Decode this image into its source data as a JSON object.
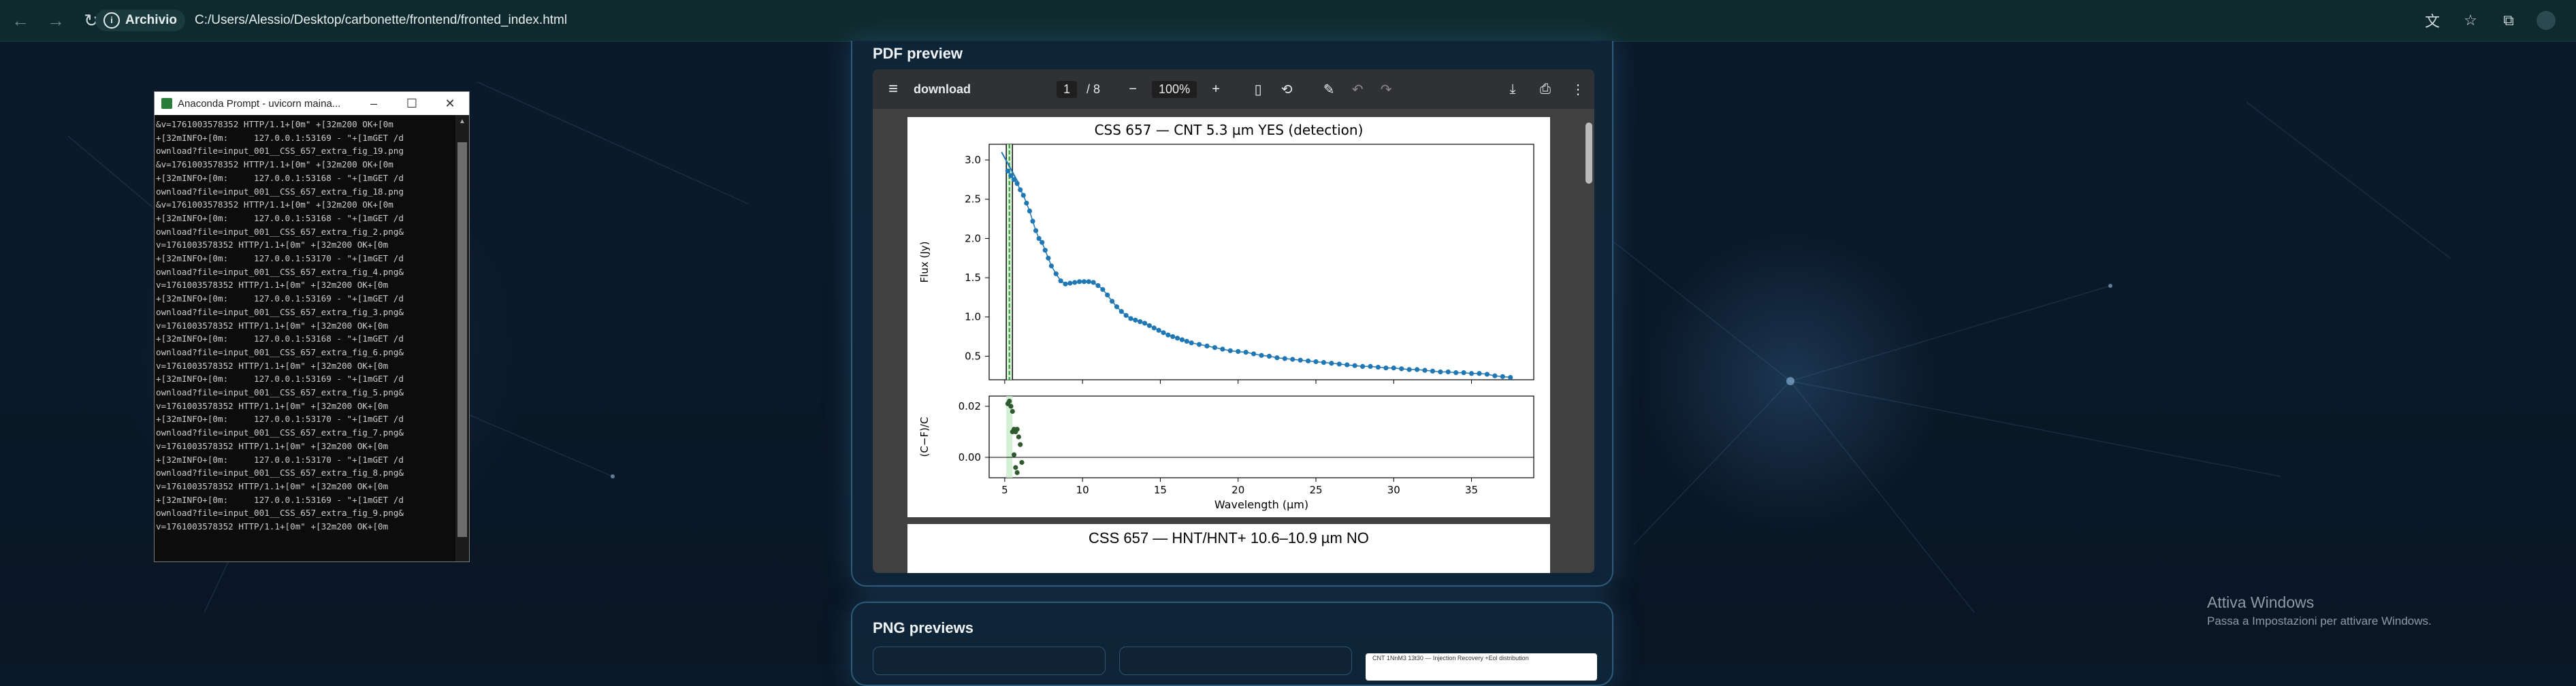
{
  "browser": {
    "back_icon": "arrow-left-icon",
    "forward_icon": "arrow-right-icon",
    "reload_icon": "reload-icon",
    "site_info_label": "Archivio",
    "url": "C:/Users/Alessio/Desktop/carbonette/frontend/fronted_index.html"
  },
  "terminal": {
    "title": "Anaconda Prompt - uvicorn  maina...",
    "lines": [
      "&v=1761003578352 HTTP/1.1+[0m\" +[32m200 OK+[0m",
      "+[32mINFO+[0m:     127.0.0.1:53169 - \"+[1mGET /d",
      "ownload?file=input_001__CSS_657_extra_fig_19.png",
      "&v=1761003578352 HTTP/1.1+[0m\" +[32m200 OK+[0m",
      "+[32mINFO+[0m:     127.0.0.1:53168 - \"+[1mGET /d",
      "ownload?file=input_001__CSS_657_extra_fig_18.png",
      "&v=1761003578352 HTTP/1.1+[0m\" +[32m200 OK+[0m",
      "+[32mINFO+[0m:     127.0.0.1:53168 - \"+[1mGET /d",
      "ownload?file=input_001__CSS_657_extra_fig_2.png&",
      "v=1761003578352 HTTP/1.1+[0m\" +[32m200 OK+[0m",
      "+[32mINFO+[0m:     127.0.0.1:53170 - \"+[1mGET /d",
      "ownload?file=input_001__CSS_657_extra_fig_4.png&",
      "v=1761003578352 HTTP/1.1+[0m\" +[32m200 OK+[0m",
      "+[32mINFO+[0m:     127.0.0.1:53169 - \"+[1mGET /d",
      "ownload?file=input_001__CSS_657_extra_fig_3.png&",
      "v=1761003578352 HTTP/1.1+[0m\" +[32m200 OK+[0m",
      "+[32mINFO+[0m:     127.0.0.1:53168 - \"+[1mGET /d",
      "ownload?file=input_001__CSS_657_extra_fig_6.png&",
      "v=1761003578352 HTTP/1.1+[0m\" +[32m200 OK+[0m",
      "+[32mINFO+[0m:     127.0.0.1:53169 - \"+[1mGET /d",
      "ownload?file=input_001__CSS_657_extra_fig_5.png&",
      "v=1761003578352 HTTP/1.1+[0m\" +[32m200 OK+[0m",
      "+[32mINFO+[0m:     127.0.0.1:53170 - \"+[1mGET /d",
      "ownload?file=input_001__CSS_657_extra_fig_7.png&",
      "v=1761003578352 HTTP/1.1+[0m\" +[32m200 OK+[0m",
      "+[32mINFO+[0m:     127.0.0.1:53170 - \"+[1mGET /d",
      "ownload?file=input_001__CSS_657_extra_fig_8.png&",
      "v=1761003578352 HTTP/1.1+[0m\" +[32m200 OK+[0m",
      "+[32mINFO+[0m:     127.0.0.1:53169 - \"+[1mGET /d",
      "ownload?file=input_001__CSS_657_extra_fig_9.png&",
      "v=1761003578352 HTTP/1.1+[0m\" +[32m200 OK+[0m"
    ]
  },
  "pdf_section": {
    "title": "PDF preview",
    "toolbar": {
      "doc_name": "download",
      "page_current": "1",
      "page_total": "/ 8",
      "zoom": "100%"
    },
    "page2_title": "CSS 657 — HNT/HNT+ 10.6–10.9 µm NO"
  },
  "png_section": {
    "title": "PNG previews",
    "thumb_caption": "CNT 1NnM3 13t30 — Injection Recovery +Eol distribution"
  },
  "watermark": {
    "line1": "Attiva Windows",
    "line2": "Passa a Impostazioni per attivare Windows."
  },
  "chart_data": {
    "type": "line",
    "title": "CSS 657 — CNT 5.3 µm YES (detection)",
    "ylabel": "Flux (Jy)",
    "xlabel": "Wavelength (µm)",
    "residual_ylabel": "(C−F)/C",
    "xlim": [
      4,
      39
    ],
    "ylim": [
      0.2,
      3.2
    ],
    "residual_ylim": [
      -0.008,
      0.024
    ],
    "xticks": [
      "5",
      "10",
      "15",
      "20",
      "25",
      "30",
      "35"
    ],
    "yticks": [
      "0.5",
      "1.0",
      "1.5",
      "2.0",
      "2.5",
      "3.0"
    ],
    "residual_yticks": [
      "0.00",
      "0.02"
    ],
    "band_center": 5.3,
    "band_range": [
      5.1,
      5.5
    ],
    "colors": {
      "series": "#1f77b4",
      "band_line": "#2ca02c",
      "band_fill": "#c9ecc9",
      "residual": "#2f5a2f"
    },
    "series": [
      {
        "x": [
          5.2,
          5.4,
          5.6,
          5.8,
          6.0,
          6.2,
          6.4,
          6.6,
          6.8,
          7.0,
          7.2,
          7.4,
          7.6,
          7.8,
          8.0,
          8.3,
          8.6,
          8.9,
          9.2,
          9.5,
          9.8,
          10.1,
          10.4,
          10.7,
          11.0,
          11.3,
          11.6,
          11.9,
          12.2,
          12.5,
          12.8,
          13.1,
          13.4,
          13.7,
          14.0,
          14.3,
          14.6,
          14.9,
          15.2,
          15.5,
          15.8,
          16.1,
          16.4,
          16.7,
          17.0,
          17.5,
          18.0,
          18.5,
          19.0,
          19.5,
          20.0,
          20.5,
          21.0,
          21.5,
          22.0,
          22.5,
          23.0,
          23.5,
          24.0,
          24.5,
          25.0,
          25.5,
          26.0,
          26.5,
          27.0,
          27.5,
          28.0,
          28.5,
          29.0,
          29.5,
          30.0,
          30.5,
          31.0,
          31.5,
          32.0,
          32.5,
          33.0,
          33.5,
          34.0,
          34.5,
          35.0,
          35.5,
          36.0,
          36.5,
          37.0,
          37.5
        ],
        "y": [
          2.86,
          2.8,
          2.75,
          2.7,
          2.62,
          2.55,
          2.45,
          2.35,
          2.22,
          2.1,
          2.0,
          1.95,
          1.85,
          1.75,
          1.65,
          1.55,
          1.46,
          1.42,
          1.43,
          1.44,
          1.45,
          1.45,
          1.45,
          1.44,
          1.4,
          1.35,
          1.28,
          1.2,
          1.13,
          1.07,
          1.02,
          0.98,
          0.96,
          0.94,
          0.92,
          0.89,
          0.86,
          0.83,
          0.8,
          0.77,
          0.75,
          0.73,
          0.71,
          0.69,
          0.67,
          0.65,
          0.63,
          0.61,
          0.59,
          0.57,
          0.56,
          0.55,
          0.53,
          0.51,
          0.5,
          0.48,
          0.47,
          0.46,
          0.45,
          0.44,
          0.43,
          0.42,
          0.41,
          0.4,
          0.39,
          0.38,
          0.37,
          0.37,
          0.36,
          0.35,
          0.35,
          0.34,
          0.33,
          0.33,
          0.32,
          0.31,
          0.3,
          0.3,
          0.29,
          0.29,
          0.28,
          0.28,
          0.27,
          0.25,
          0.24,
          0.23
        ]
      }
    ],
    "continuum": {
      "x": [
        4.8,
        5.9
      ],
      "y": [
        3.1,
        2.7
      ]
    },
    "residual": {
      "x": [
        5.2,
        5.3,
        5.4,
        5.5,
        5.6,
        5.7,
        5.8,
        5.9,
        6.0,
        6.1,
        5.5,
        5.6,
        5.7,
        5.8
      ],
      "y": [
        0.021,
        0.022,
        0.02,
        0.018,
        0.011,
        0.01,
        0.011,
        0.008,
        0.005,
        -0.002,
        0.01,
        0.001,
        -0.004,
        -0.006
      ]
    }
  }
}
